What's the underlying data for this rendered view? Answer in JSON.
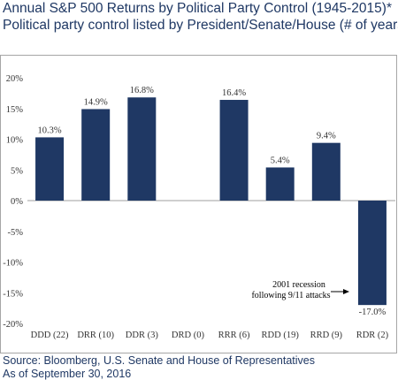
{
  "title_line1": "Annual S&P 500 Returns by Political Party Control (1945-2015)*",
  "title_line2": "Political party control listed by President/Senate/House (# of years)",
  "source_line1": "Source: Bloomberg, U.S. Senate and House of Representatives",
  "source_line2": "As of September 30, 2016",
  "colors": {
    "bar": "#1f3864",
    "text": "#1f3864",
    "axis_text": "#333333"
  },
  "annotation": {
    "line1": "2001 recession",
    "line2": "following 9/11 attacks",
    "target": "RDR (2)"
  },
  "chart_data": {
    "type": "bar",
    "title": "",
    "xlabel": "",
    "ylabel": "",
    "ylim": [
      -20,
      20
    ],
    "yticks": [
      20,
      15,
      10,
      5,
      0,
      -5,
      -10,
      -15,
      -20
    ],
    "ytick_labels": [
      "20%",
      "15%",
      "10%",
      "5%",
      "0%",
      "-5%",
      "-10%",
      "-15%",
      "-20%"
    ],
    "grid": false,
    "categories": [
      "DDD (22)",
      "DRR (10)",
      "DDR (3)",
      "DRD (0)",
      "RRR (6)",
      "RDD (19)",
      "RRD (9)",
      "RDR (2)"
    ],
    "values": [
      10.3,
      14.9,
      16.8,
      null,
      16.4,
      5.4,
      9.4,
      -17.0
    ],
    "data_labels": [
      "10.3%",
      "14.9%",
      "16.8%",
      "",
      "16.4%",
      "5.4%",
      "9.4%",
      "-17.0%"
    ]
  }
}
